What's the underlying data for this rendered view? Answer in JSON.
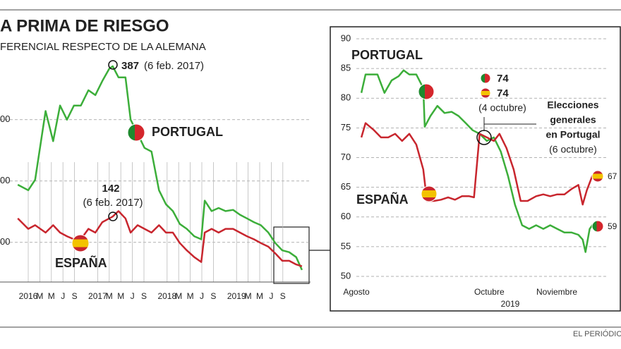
{
  "title": "A PRIMA DE RIESGO",
  "subtitle": "FERENCIAL RESPECTO DE LA ALEMANA",
  "source": "EL PERIÓDIC",
  "chart_data": [
    {
      "type": "line",
      "x": [
        -1.8,
        0,
        1.2,
        3,
        4.3,
        5.5,
        6.7,
        7.9,
        9.1,
        10.4,
        11.6,
        12.8,
        14,
        14.6,
        15.6,
        16.8,
        17.7,
        18.9,
        20.1,
        21.3,
        22.6,
        23.8,
        25,
        26.2,
        27.4,
        28.7,
        29.9,
        30.5,
        31.7,
        32.9,
        34.1,
        35.4,
        36.6,
        37.8,
        39,
        40.2,
        41.5,
        42.7,
        43.9,
        45.1,
        46.3,
        47.3
      ],
      "series": [
        {
          "name": "PORTUGAL",
          "color": "#3cae3a",
          "values": [
            194,
            185,
            202,
            314,
            265,
            323,
            300,
            323,
            323,
            348,
            340,
            363,
            383,
            387,
            369,
            369,
            300,
            277,
            254,
            248,
            185,
            162,
            151,
            130,
            122,
            110,
            105,
            168,
            151,
            156,
            151,
            153,
            145,
            139,
            133,
            128,
            116,
            99,
            87,
            84,
            76,
            55
          ]
        },
        {
          "name": "ESPAÑA",
          "color": "#c8262e",
          "values": [
            139,
            122,
            128,
            116,
            128,
            116,
            110,
            105,
            105,
            122,
            116,
            133,
            139,
            142,
            151,
            139,
            116,
            128,
            122,
            116,
            128,
            116,
            116,
            99,
            87,
            76,
            68,
            116,
            122,
            116,
            122,
            122,
            116,
            110,
            105,
            99,
            93,
            82,
            70,
            70,
            64,
            61
          ]
        }
      ],
      "xlim": [
        -2,
        48
      ],
      "xticks": [
        {
          "value": 0,
          "label": "2016"
        },
        {
          "value": 2,
          "label": "M"
        },
        {
          "value": 4,
          "label": "M"
        },
        {
          "value": 6,
          "label": "J"
        },
        {
          "value": 8,
          "label": "S"
        },
        {
          "value": 12,
          "label": "2017"
        },
        {
          "value": 14,
          "label": "M"
        },
        {
          "value": 16,
          "label": "M"
        },
        {
          "value": 18,
          "label": "J"
        },
        {
          "value": 20,
          "label": "S"
        },
        {
          "value": 24,
          "label": "2018"
        },
        {
          "value": 26,
          "label": "M"
        },
        {
          "value": 28,
          "label": "M"
        },
        {
          "value": 30,
          "label": "J"
        },
        {
          "value": 32,
          "label": "S"
        },
        {
          "value": 36,
          "label": "2019"
        },
        {
          "value": 38,
          "label": "M"
        },
        {
          "value": 40,
          "label": "M"
        },
        {
          "value": 42,
          "label": "J"
        },
        {
          "value": 44,
          "label": "S"
        }
      ],
      "ylim": [
        40,
        410
      ],
      "yticks": [
        {
          "value": 100,
          "label": "00"
        },
        {
          "value": 200,
          "label": "00"
        },
        {
          "value": 300,
          "label": "00"
        }
      ],
      "grid": true,
      "annotations": {
        "portugal_peak": 387,
        "portugal_peak_date": "(6 feb. 2017)",
        "spain_peak": 142,
        "spain_peak_date": "(6 feb. 2017)"
      }
    },
    {
      "type": "line",
      "xlabel": "2019",
      "series": [
        {
          "name": "PORTUGAL",
          "color": "#3cae3a",
          "x": [
            2.3,
            4.2,
            9.7,
            12.9,
            16.2,
            19.4,
            21.7,
            24.3,
            27.5,
            30.7,
            31.4,
            34,
            37.2,
            40.5,
            43.7,
            46.9,
            50.2,
            53.4,
            56.6,
            59.9,
            63.1,
            66.3,
            69.6,
            72.8,
            76.1,
            79.3,
            82.5,
            85.8,
            89,
            92.2,
            95.5,
            98.7,
            101.9,
            103.9,
            105.2,
            107.1,
            109.1
          ],
          "values": [
            80.9,
            84,
            84,
            80.9,
            83,
            83.7,
            84.7,
            84,
            84,
            81.7,
            75.2,
            77,
            78.7,
            77.5,
            77.7,
            77,
            75.8,
            74.6,
            74,
            72.8,
            73.4,
            71,
            66.9,
            62.1,
            58.6,
            58,
            58.6,
            58,
            58.6,
            58,
            57.4,
            57.4,
            57,
            56.2,
            54.1,
            58,
            59
          ]
        },
        {
          "name": "ESPAÑA",
          "color": "#c8262e",
          "x": [
            2.3,
            4.2,
            8.1,
            11.3,
            14.6,
            17.8,
            21,
            24.3,
            27.5,
            30.7,
            32.4,
            35.6,
            38.8,
            42.1,
            45.3,
            48.5,
            51.8,
            54,
            56.6,
            59.9,
            63.1,
            65.7,
            68.9,
            72.2,
            75.4,
            78.6,
            82.5,
            85.8,
            89,
            92.2,
            95.5,
            98.7,
            101.9,
            103.9,
            105.8,
            108.4
          ],
          "values": [
            73.4,
            75.8,
            74.6,
            73.4,
            73.4,
            74,
            72.8,
            74,
            72.2,
            68,
            62.7,
            62.7,
            62.9,
            63.3,
            62.9,
            63.5,
            63.5,
            63.3,
            74,
            73.4,
            72.8,
            74,
            71.6,
            68,
            62.7,
            62.7,
            63.5,
            63.8,
            63.5,
            63.8,
            63.8,
            64.7,
            65.4,
            62.1,
            64.5,
            67
          ]
        }
      ],
      "xlim": [
        0,
        115
      ],
      "xticks": [
        {
          "value": 0,
          "label": "Agosto"
        },
        {
          "value": 61,
          "label": "Octubre"
        },
        {
          "value": 92,
          "label": "Noviembre"
        }
      ],
      "ylim": [
        50,
        90
      ],
      "yticks": [
        50,
        55,
        60,
        65,
        70,
        75,
        80,
        85,
        90
      ],
      "grid": true,
      "annotations": {
        "portugal_value": 74,
        "spain_value": 74,
        "date": "(4 octubre)",
        "note": [
          "Elecciones",
          "generales",
          "en Portugal"
        ],
        "note_date": "(6 octubre)",
        "spain_last": 67,
        "portugal_last": 59
      }
    }
  ]
}
